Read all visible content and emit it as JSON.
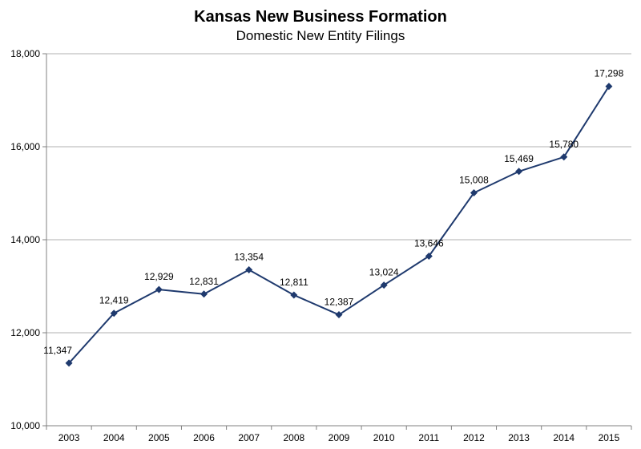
{
  "chart_data": {
    "type": "line",
    "title": "Kansas New Business Formation",
    "subtitle": "Domestic New Entity Filings",
    "xlabel": "",
    "ylabel": "",
    "categories": [
      "2003",
      "2004",
      "2005",
      "2006",
      "2007",
      "2008",
      "2009",
      "2010",
      "2011",
      "2012",
      "2013",
      "2014",
      "2015"
    ],
    "values": [
      11347,
      12419,
      12929,
      12831,
      13354,
      12811,
      12387,
      13024,
      13646,
      15008,
      15469,
      15780,
      17298
    ],
    "data_labels": [
      "11,347",
      "12,419",
      "12,929",
      "12,831",
      "13,354",
      "12,811",
      "12,387",
      "13,024",
      "13,646",
      "15,008",
      "15,469",
      "15,780",
      "17,298"
    ],
    "ylim": [
      10000,
      18000
    ],
    "y_ticks": [
      10000,
      12000,
      14000,
      16000,
      18000
    ],
    "y_tick_labels": [
      "10,000",
      "12,000",
      "14,000",
      "16,000",
      "18,000"
    ],
    "grid": true,
    "legend": "none",
    "colors": {
      "series": "#1f3a6e",
      "grid": "#b0b0b0",
      "axis": "#808080"
    }
  }
}
